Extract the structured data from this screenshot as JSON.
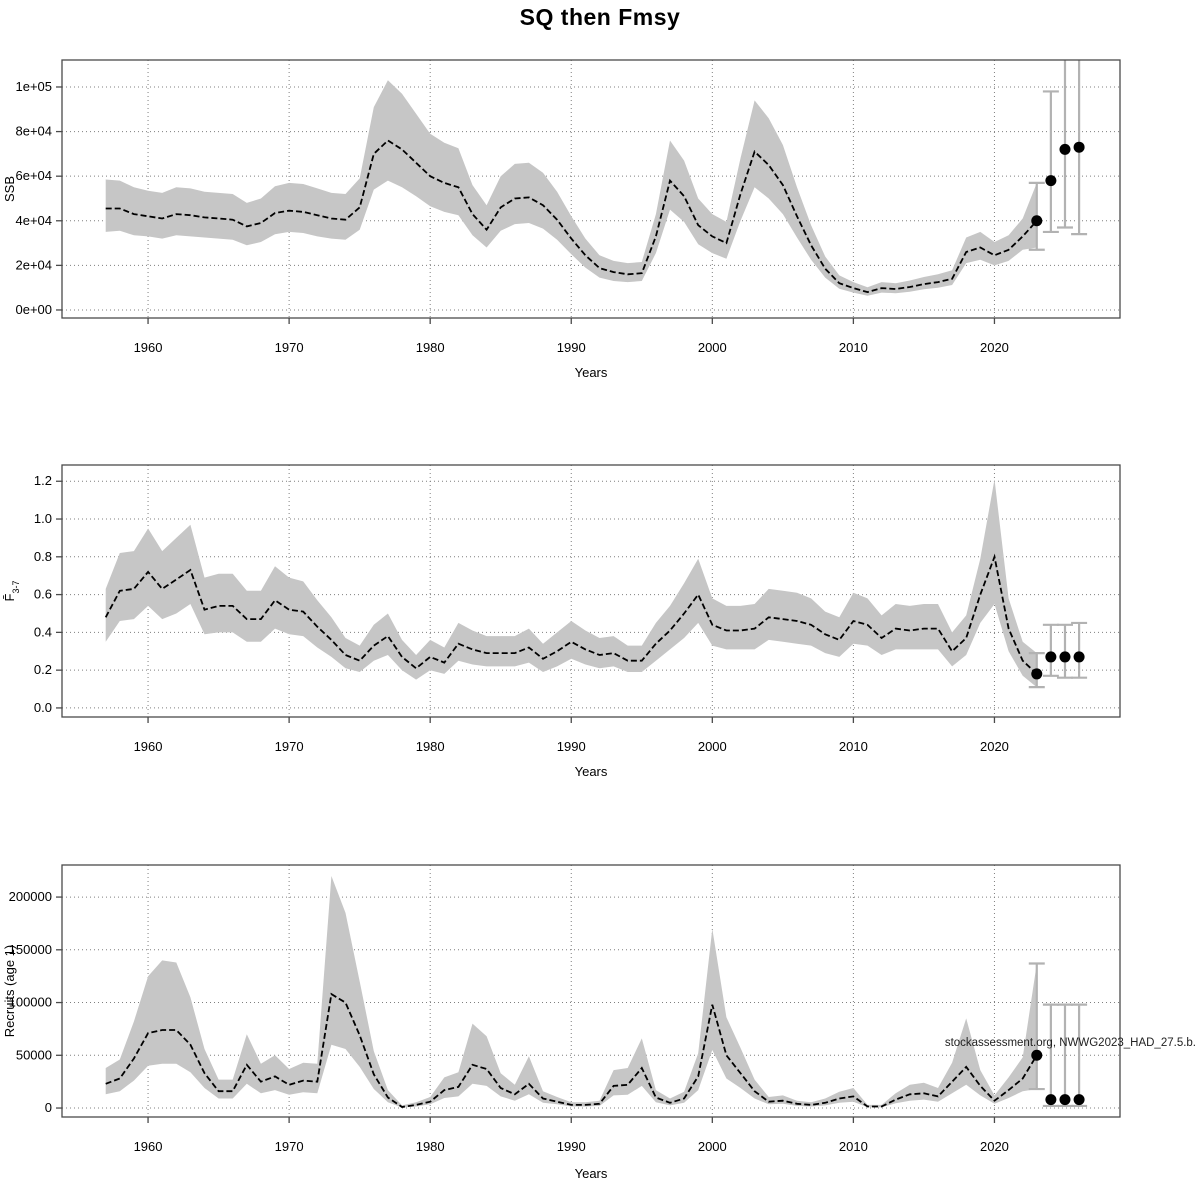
{
  "title": "SQ then Fmsy",
  "watermark": "stockassessment.org, NWWG2023_HAD_27.5.b.",
  "colors": {
    "band": "#c6c6c6",
    "median_line": "#000000",
    "forecast_dot": "#000000",
    "error_bar": "#b2b2b2",
    "grid": "#7f7f7f",
    "frame": "#4a4a4a",
    "text": "#000000"
  },
  "chart_data": [
    {
      "type": "line",
      "name": "ssb",
      "ylabel": "SSB",
      "ylabel_main": "SSB",
      "ylabel_sub": "",
      "xlabel": "Years",
      "grid": true,
      "legend": "none",
      "band_note": "shaded area = confidence interval, dashed line = median, dots = final year and forecast with error bars",
      "xlim": [
        1953.9,
        2028.9
      ],
      "ylim": [
        -3600,
        112100
      ],
      "xticks": [
        1960,
        1970,
        1980,
        1990,
        2000,
        2010,
        2020
      ],
      "xtick_labels": [
        "1960",
        "1970",
        "1980",
        "1990",
        "2000",
        "2010",
        "2020"
      ],
      "yticks": [
        0,
        20000,
        40000,
        60000,
        80000,
        100000
      ],
      "ytick_labels": [
        "0e+00",
        "2e+04",
        "4e+04",
        "6e+04",
        "8e+04",
        "1e+05"
      ],
      "years": [
        1957,
        1958,
        1959,
        1960,
        1961,
        1962,
        1963,
        1964,
        1965,
        1966,
        1967,
        1968,
        1969,
        1970,
        1971,
        1972,
        1973,
        1974,
        1975,
        1976,
        1977,
        1978,
        1979,
        1980,
        1981,
        1982,
        1983,
        1984,
        1985,
        1986,
        1987,
        1988,
        1989,
        1990,
        1991,
        1992,
        1993,
        1994,
        1995,
        1996,
        1997,
        1998,
        1999,
        2000,
        2001,
        2002,
        2003,
        2004,
        2005,
        2006,
        2007,
        2008,
        2009,
        2010,
        2011,
        2012,
        2013,
        2014,
        2015,
        2016,
        2017,
        2018,
        2019,
        2020,
        2021,
        2022,
        2023
      ],
      "median": [
        45500,
        45500,
        43000,
        42000,
        41000,
        43000,
        42500,
        41500,
        41000,
        40500,
        37500,
        39000,
        43500,
        44500,
        44000,
        42500,
        41000,
        40500,
        46000,
        70000,
        76000,
        72000,
        66000,
        60000,
        57000,
        55000,
        43000,
        36000,
        46000,
        50000,
        50500,
        47000,
        40500,
        32000,
        24500,
        18800,
        17000,
        16000,
        16500,
        33000,
        58000,
        51000,
        38000,
        33000,
        30000,
        52000,
        71000,
        65000,
        56000,
        42000,
        29000,
        18500,
        12000,
        9800,
        8000,
        9800,
        9400,
        10300,
        11600,
        12500,
        14000,
        26000,
        28000,
        24500,
        27000,
        33000,
        40000
      ],
      "lo": [
        35000,
        35500,
        33500,
        33000,
        32000,
        33500,
        33000,
        32500,
        32000,
        31500,
        29000,
        30500,
        34000,
        35000,
        34500,
        33000,
        32000,
        31500,
        36000,
        54000,
        58000,
        55000,
        51000,
        46500,
        44000,
        42500,
        33500,
        28000,
        35500,
        38500,
        39000,
        36500,
        31500,
        25000,
        19000,
        14500,
        13000,
        12500,
        13000,
        25500,
        45000,
        39500,
        29500,
        25500,
        23000,
        40000,
        55000,
        50000,
        43000,
        32500,
        22500,
        14500,
        9500,
        7800,
        6400,
        7800,
        7500,
        8200,
        9300,
        10000,
        11200,
        21000,
        22500,
        20000,
        22000,
        27000,
        28000
      ],
      "hi": [
        58500,
        58000,
        55000,
        53500,
        52500,
        55000,
        54500,
        53000,
        52500,
        52000,
        48000,
        50000,
        55500,
        57000,
        56500,
        54500,
        52500,
        52000,
        59000,
        91000,
        103000,
        97000,
        88000,
        79000,
        75000,
        72500,
        56000,
        47000,
        60000,
        65500,
        66000,
        61500,
        53000,
        42000,
        32000,
        24500,
        22000,
        21000,
        21500,
        43000,
        76000,
        67000,
        50000,
        43000,
        39500,
        68000,
        94000,
        86000,
        74000,
        55000,
        38000,
        24000,
        15500,
        12500,
        10200,
        12500,
        12000,
        13200,
        14800,
        16000,
        17800,
        32500,
        35000,
        30500,
        33500,
        41000,
        57000
      ],
      "points": [
        {
          "year": 2023,
          "value": 40000,
          "lo": 27000,
          "hi": 57000
        },
        {
          "year": 2024,
          "value": 58000,
          "lo": 35000,
          "hi": 98000
        },
        {
          "year": 2025,
          "value": 72000,
          "lo": 37000,
          "hi": 113000
        },
        {
          "year": 2026,
          "value": 73000,
          "lo": 34000,
          "hi": 113000
        }
      ]
    },
    {
      "type": "line",
      "name": "fbar",
      "ylabel": "F̄3-7",
      "ylabel_main": "F̄",
      "ylabel_sub": "3-7",
      "xlabel": "Years",
      "grid": true,
      "legend": "none",
      "band_note": "shaded area = confidence interval, dashed line = median, dots = final year and forecast with error bars",
      "xlim": [
        1953.9,
        2028.9
      ],
      "ylim": [
        -0.048,
        1.286
      ],
      "xticks": [
        1960,
        1970,
        1980,
        1990,
        2000,
        2010,
        2020
      ],
      "xtick_labels": [
        "1960",
        "1970",
        "1980",
        "1990",
        "2000",
        "2010",
        "2020"
      ],
      "yticks": [
        0.0,
        0.2,
        0.4,
        0.6,
        0.8,
        1.0,
        1.2
      ],
      "ytick_labels": [
        "0.0",
        "0.2",
        "0.4",
        "0.6",
        "0.8",
        "1.0",
        "1.2"
      ],
      "years": [
        1957,
        1958,
        1959,
        1960,
        1961,
        1962,
        1963,
        1964,
        1965,
        1966,
        1967,
        1968,
        1969,
        1970,
        1971,
        1972,
        1973,
        1974,
        1975,
        1976,
        1977,
        1978,
        1979,
        1980,
        1981,
        1982,
        1983,
        1984,
        1985,
        1986,
        1987,
        1988,
        1989,
        1990,
        1991,
        1992,
        1993,
        1994,
        1995,
        1996,
        1997,
        1998,
        1999,
        2000,
        2001,
        2002,
        2003,
        2004,
        2005,
        2006,
        2007,
        2008,
        2009,
        2010,
        2011,
        2012,
        2013,
        2014,
        2015,
        2016,
        2017,
        2018,
        2019,
        2020,
        2021,
        2022,
        2023
      ],
      "median": [
        0.48,
        0.62,
        0.63,
        0.72,
        0.63,
        0.68,
        0.73,
        0.52,
        0.54,
        0.54,
        0.47,
        0.47,
        0.57,
        0.52,
        0.51,
        0.43,
        0.36,
        0.28,
        0.25,
        0.33,
        0.38,
        0.27,
        0.21,
        0.27,
        0.24,
        0.34,
        0.31,
        0.29,
        0.29,
        0.29,
        0.32,
        0.26,
        0.3,
        0.35,
        0.31,
        0.28,
        0.29,
        0.25,
        0.25,
        0.34,
        0.41,
        0.5,
        0.6,
        0.44,
        0.41,
        0.41,
        0.42,
        0.48,
        0.47,
        0.46,
        0.44,
        0.39,
        0.36,
        0.46,
        0.44,
        0.37,
        0.42,
        0.41,
        0.42,
        0.42,
        0.3,
        0.37,
        0.6,
        0.8,
        0.42,
        0.25,
        0.18
      ],
      "lo": [
        0.35,
        0.46,
        0.47,
        0.54,
        0.47,
        0.5,
        0.55,
        0.39,
        0.4,
        0.4,
        0.35,
        0.35,
        0.42,
        0.39,
        0.38,
        0.32,
        0.27,
        0.21,
        0.19,
        0.25,
        0.28,
        0.2,
        0.15,
        0.2,
        0.18,
        0.25,
        0.23,
        0.22,
        0.22,
        0.22,
        0.24,
        0.19,
        0.22,
        0.26,
        0.23,
        0.21,
        0.22,
        0.19,
        0.19,
        0.25,
        0.31,
        0.37,
        0.45,
        0.33,
        0.31,
        0.31,
        0.31,
        0.36,
        0.35,
        0.34,
        0.33,
        0.29,
        0.27,
        0.34,
        0.33,
        0.28,
        0.31,
        0.31,
        0.31,
        0.31,
        0.22,
        0.28,
        0.45,
        0.55,
        0.3,
        0.17,
        0.11
      ],
      "hi": [
        0.63,
        0.82,
        0.83,
        0.95,
        0.83,
        0.9,
        0.97,
        0.69,
        0.71,
        0.71,
        0.62,
        0.62,
        0.75,
        0.69,
        0.67,
        0.57,
        0.48,
        0.37,
        0.33,
        0.44,
        0.5,
        0.36,
        0.28,
        0.36,
        0.32,
        0.45,
        0.41,
        0.38,
        0.38,
        0.38,
        0.42,
        0.34,
        0.4,
        0.46,
        0.41,
        0.37,
        0.38,
        0.33,
        0.33,
        0.45,
        0.54,
        0.66,
        0.79,
        0.58,
        0.54,
        0.54,
        0.55,
        0.63,
        0.62,
        0.61,
        0.58,
        0.51,
        0.48,
        0.61,
        0.58,
        0.49,
        0.55,
        0.54,
        0.55,
        0.55,
        0.4,
        0.49,
        0.79,
        1.21,
        0.58,
        0.35,
        0.29
      ],
      "points": [
        {
          "year": 2023,
          "value": 0.18,
          "lo": 0.11,
          "hi": 0.29
        },
        {
          "year": 2024,
          "value": 0.27,
          "lo": 0.17,
          "hi": 0.44
        },
        {
          "year": 2025,
          "value": 0.27,
          "lo": 0.16,
          "hi": 0.44
        },
        {
          "year": 2026,
          "value": 0.27,
          "lo": 0.16,
          "hi": 0.45
        }
      ]
    },
    {
      "type": "line",
      "name": "recruits",
      "ylabel": "Recruits (age 1)",
      "ylabel_main": "Recruits (age 1)",
      "ylabel_sub": "",
      "xlabel": "Years",
      "grid": true,
      "legend": "none",
      "band_note": "shaded area = confidence interval, dashed line = median, dots = final year and forecast with error bars",
      "xlim": [
        1953.9,
        2028.9
      ],
      "ylim": [
        -8500,
        230400
      ],
      "xticks": [
        1960,
        1970,
        1980,
        1990,
        2000,
        2010,
        2020
      ],
      "xtick_labels": [
        "1960",
        "1970",
        "1980",
        "1990",
        "2000",
        "2010",
        "2020"
      ],
      "yticks": [
        0,
        50000,
        100000,
        150000,
        200000
      ],
      "ytick_labels": [
        "0",
        "50000",
        "100000",
        "150000",
        "200000"
      ],
      "years": [
        1957,
        1958,
        1959,
        1960,
        1961,
        1962,
        1963,
        1964,
        1965,
        1966,
        1967,
        1968,
        1969,
        1970,
        1971,
        1972,
        1973,
        1974,
        1975,
        1976,
        1977,
        1978,
        1979,
        1980,
        1981,
        1982,
        1983,
        1984,
        1985,
        1986,
        1987,
        1988,
        1989,
        1990,
        1991,
        1992,
        1993,
        1994,
        1995,
        1996,
        1997,
        1998,
        1999,
        2000,
        2001,
        2002,
        2003,
        2004,
        2005,
        2006,
        2007,
        2008,
        2009,
        2010,
        2011,
        2012,
        2013,
        2014,
        2015,
        2016,
        2017,
        2018,
        2019,
        2020,
        2021,
        2022,
        2023
      ],
      "median": [
        23000,
        28000,
        47000,
        71000,
        74000,
        74000,
        60000,
        33000,
        16000,
        16000,
        41000,
        25000,
        30000,
        22000,
        26000,
        25000,
        108000,
        100000,
        69000,
        32000,
        10000,
        1000,
        3000,
        6000,
        17000,
        20000,
        41000,
        37000,
        19000,
        13000,
        23000,
        9000,
        6000,
        3000,
        3000,
        4000,
        21000,
        22000,
        38000,
        10000,
        5000,
        9000,
        30000,
        98000,
        50000,
        33000,
        16000,
        6000,
        7000,
        4000,
        3000,
        5000,
        9000,
        11000,
        1500,
        1500,
        8000,
        13000,
        14000,
        11000,
        25000,
        39000,
        21000,
        7000,
        17000,
        28000,
        50000
      ],
      "lo": [
        13000,
        16000,
        26000,
        40000,
        42000,
        42000,
        34000,
        19000,
        9000,
        9000,
        23000,
        14000,
        17000,
        12500,
        15000,
        14000,
        60000,
        56000,
        39000,
        18000,
        5500,
        500,
        1500,
        3500,
        9500,
        11000,
        23000,
        21000,
        11000,
        7000,
        13000,
        5000,
        3500,
        1500,
        1500,
        2000,
        12000,
        12500,
        21000,
        5500,
        2500,
        5000,
        17000,
        55000,
        28000,
        19000,
        9000,
        3500,
        4000,
        2000,
        1500,
        2500,
        5000,
        6000,
        700,
        700,
        4500,
        7000,
        8000,
        6000,
        14000,
        22000,
        12000,
        4000,
        9500,
        16000,
        18000
      ],
      "hi": [
        38000,
        46000,
        82000,
        125000,
        140000,
        138000,
        105000,
        56000,
        27000,
        27000,
        70000,
        42000,
        50000,
        37000,
        43000,
        42000,
        220000,
        185000,
        120000,
        54000,
        17000,
        2500,
        5500,
        10500,
        29000,
        34000,
        80000,
        68000,
        33000,
        22000,
        49000,
        16000,
        10500,
        5500,
        5500,
        7000,
        36000,
        38000,
        66000,
        17000,
        9000,
        15500,
        52000,
        170000,
        86000,
        57000,
        27000,
        10500,
        12000,
        7000,
        5500,
        9000,
        15500,
        19000,
        3000,
        3000,
        14000,
        22000,
        24000,
        19000,
        43000,
        85000,
        36000,
        12000,
        29000,
        48000,
        137000
      ],
      "points": [
        {
          "year": 2023,
          "value": 50000,
          "lo": 18000,
          "hi": 137000
        },
        {
          "year": 2024,
          "value": 8000,
          "lo": 2000,
          "hi": 98000
        },
        {
          "year": 2025,
          "value": 8000,
          "lo": 2000,
          "hi": 98000
        },
        {
          "year": 2026,
          "value": 8000,
          "lo": 2000,
          "hi": 98000
        }
      ]
    }
  ]
}
